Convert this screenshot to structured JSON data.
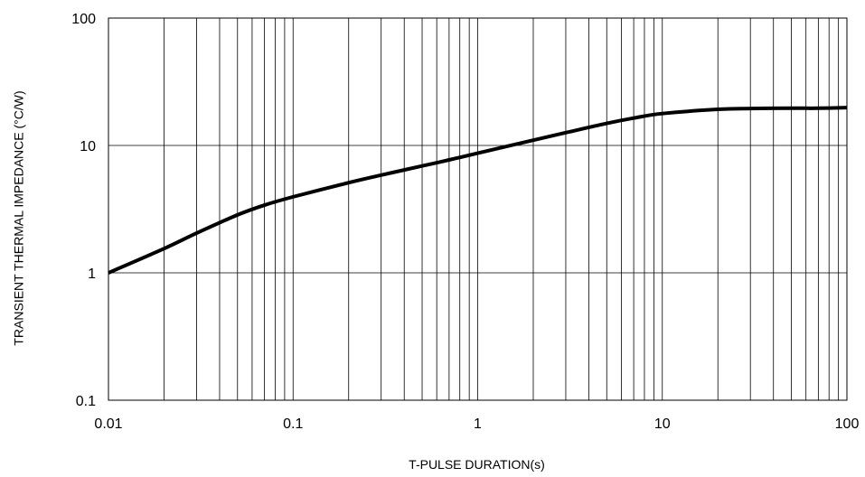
{
  "chart_data": {
    "type": "line",
    "title": "",
    "xlabel": "T-PULSE DURATION(s)",
    "ylabel": "TRANSIENT THERMAL IMPEDANCE (°C/W)",
    "xscale": "log",
    "yscale": "log",
    "xlim": [
      0.01,
      100
    ],
    "ylim": [
      0.1,
      100
    ],
    "grid": true,
    "x_tick_labels": [
      "0.01",
      "0.1",
      "1",
      "10",
      "100"
    ],
    "y_tick_labels": [
      "100",
      "10",
      "1",
      "0.1"
    ],
    "series": [
      {
        "color": "#000000",
        "x": [
          0.01,
          0.02,
          0.03,
          0.05,
          0.07,
          0.1,
          0.2,
          0.3,
          0.5,
          0.7,
          1,
          2,
          3,
          5,
          7,
          10,
          20,
          30,
          50,
          70,
          100
        ],
        "y": [
          1.0,
          1.55,
          2.05,
          2.85,
          3.4,
          3.95,
          5.1,
          5.85,
          6.9,
          7.7,
          8.7,
          11.0,
          12.6,
          14.9,
          16.4,
          17.8,
          19.2,
          19.5,
          19.6,
          19.6,
          19.8
        ]
      }
    ]
  }
}
